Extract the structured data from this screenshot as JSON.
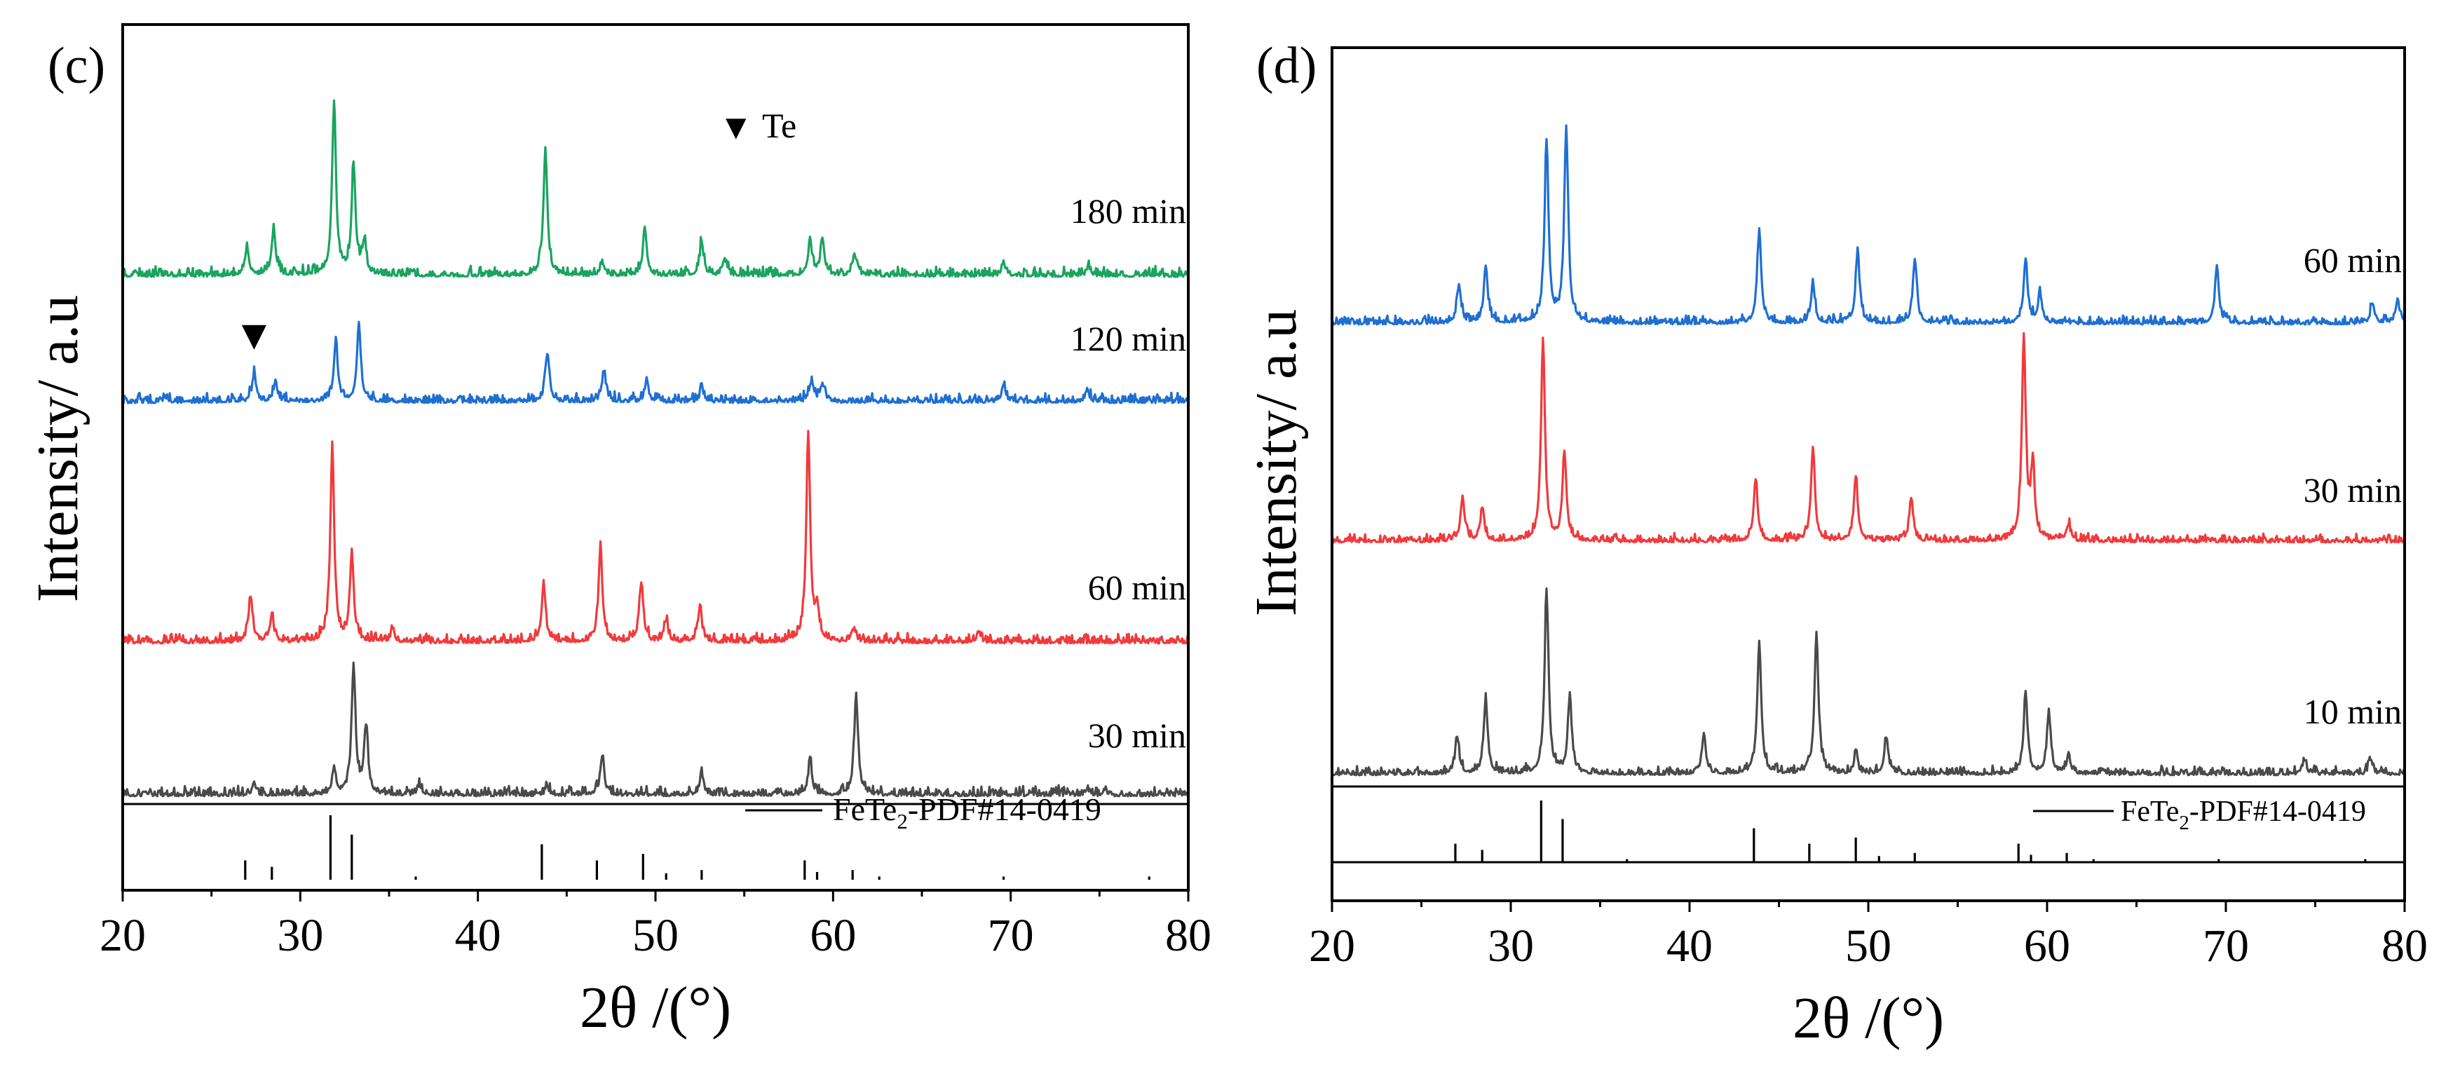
{
  "colors": {
    "green": "#1aa460",
    "blue": "#1f6fd2",
    "red": "#f03a3c",
    "gray": "#4a4a4a",
    "black": "#000000"
  },
  "chart_data": [
    {
      "type": "line",
      "panel_label": "(c)",
      "xlabel": "2θ /(°)",
      "ylabel": "Intensity/ a.u",
      "xlim": [
        20,
        80
      ],
      "xticks": [
        20,
        30,
        40,
        50,
        60,
        70,
        80
      ],
      "grid": false,
      "annotation": {
        "marker": "▼",
        "text": "Te",
        "peak_2theta": 27.4,
        "on_series": "120 min"
      },
      "series": [
        {
          "name": "180 min",
          "color": "green",
          "peaks": [
            [
              27.0,
              0.17
            ],
            [
              28.5,
              0.27
            ],
            [
              31.9,
              1.0
            ],
            [
              33.0,
              0.65
            ],
            [
              33.6,
              0.18
            ],
            [
              43.8,
              0.73
            ],
            [
              47.0,
              0.08
            ],
            [
              49.4,
              0.27
            ],
            [
              52.6,
              0.19
            ],
            [
              53.9,
              0.09
            ],
            [
              58.7,
              0.2
            ],
            [
              59.4,
              0.22
            ],
            [
              61.2,
              0.13
            ],
            [
              69.6,
              0.07
            ],
            [
              74.4,
              0.05
            ]
          ]
        },
        {
          "name": "120 min",
          "color": "blue",
          "peaks": [
            [
              27.4,
              0.27
            ],
            [
              28.6,
              0.2
            ],
            [
              32.0,
              0.6
            ],
            [
              33.3,
              0.74
            ],
            [
              43.9,
              0.48
            ],
            [
              47.1,
              0.3
            ],
            [
              49.5,
              0.17
            ],
            [
              52.6,
              0.12
            ],
            [
              58.8,
              0.2
            ],
            [
              59.4,
              0.18
            ],
            [
              69.6,
              0.17
            ],
            [
              74.3,
              0.12
            ]
          ]
        },
        {
          "name": "60 min",
          "color": "red",
          "peaks": [
            [
              27.2,
              0.22
            ],
            [
              28.4,
              0.13
            ],
            [
              31.8,
              0.93
            ],
            [
              32.9,
              0.41
            ],
            [
              35.2,
              0.06
            ],
            [
              43.7,
              0.28
            ],
            [
              46.9,
              0.45
            ],
            [
              49.2,
              0.28
            ],
            [
              50.6,
              0.1
            ],
            [
              52.5,
              0.17
            ],
            [
              58.6,
              1.0
            ],
            [
              59.1,
              0.15
            ],
            [
              61.2,
              0.06
            ],
            [
              68.2,
              0.05
            ]
          ]
        },
        {
          "name": "30 min",
          "color": "gray",
          "peaks": [
            [
              27.4,
              0.07
            ],
            [
              31.9,
              0.2
            ],
            [
              33.0,
              1.0
            ],
            [
              33.7,
              0.52
            ],
            [
              36.7,
              0.08
            ],
            [
              43.9,
              0.06
            ],
            [
              47.0,
              0.3
            ],
            [
              52.6,
              0.17
            ],
            [
              58.7,
              0.26
            ],
            [
              61.3,
              0.76
            ],
            [
              74.3,
              0.05
            ]
          ]
        }
      ],
      "reference": {
        "label": "FeTe",
        "subscript": "2",
        "suffix": "-PDF#14-0419",
        "lines": [
          [
            26.9,
            0.3
          ],
          [
            28.4,
            0.2
          ],
          [
            31.7,
            1.0
          ],
          [
            32.9,
            0.7
          ],
          [
            36.5,
            0.05
          ],
          [
            43.6,
            0.55
          ],
          [
            46.7,
            0.3
          ],
          [
            49.3,
            0.4
          ],
          [
            50.6,
            0.1
          ],
          [
            52.6,
            0.15
          ],
          [
            58.4,
            0.3
          ],
          [
            59.1,
            0.12
          ],
          [
            61.1,
            0.15
          ],
          [
            62.6,
            0.05
          ],
          [
            69.6,
            0.05
          ],
          [
            77.8,
            0.05
          ]
        ]
      }
    },
    {
      "type": "line",
      "panel_label": "(d)",
      "xlabel": "2θ /(°)",
      "ylabel": "Intensity/ a.u",
      "xlim": [
        20,
        80
      ],
      "xticks": [
        20,
        30,
        40,
        50,
        60,
        70,
        80
      ],
      "grid": false,
      "series": [
        {
          "name": "60 min",
          "color": "blue",
          "peaks": [
            [
              27.1,
              0.2
            ],
            [
              28.6,
              0.28
            ],
            [
              32.0,
              0.93
            ],
            [
              33.1,
              1.0
            ],
            [
              43.9,
              0.48
            ],
            [
              46.9,
              0.2
            ],
            [
              49.4,
              0.37
            ],
            [
              52.6,
              0.33
            ],
            [
              58.8,
              0.33
            ],
            [
              59.6,
              0.15
            ],
            [
              69.5,
              0.29
            ],
            [
              78.2,
              0.1
            ],
            [
              79.6,
              0.12
            ]
          ]
        },
        {
          "name": "30 min",
          "color": "red",
          "peaks": [
            [
              27.3,
              0.22
            ],
            [
              28.4,
              0.16
            ],
            [
              31.8,
              1.0
            ],
            [
              33.0,
              0.44
            ],
            [
              43.7,
              0.31
            ],
            [
              46.9,
              0.46
            ],
            [
              49.3,
              0.32
            ],
            [
              52.4,
              0.21
            ],
            [
              58.7,
              1.0
            ],
            [
              59.2,
              0.35
            ],
            [
              61.2,
              0.08
            ]
          ]
        },
        {
          "name": "10 min",
          "color": "gray",
          "peaks": [
            [
              27.0,
              0.2
            ],
            [
              28.6,
              0.4
            ],
            [
              32.0,
              1.0
            ],
            [
              33.3,
              0.42
            ],
            [
              40.8,
              0.22
            ],
            [
              43.9,
              0.72
            ],
            [
              47.1,
              0.77
            ],
            [
              49.3,
              0.1
            ],
            [
              51.0,
              0.2
            ],
            [
              58.8,
              0.43
            ],
            [
              60.1,
              0.33
            ],
            [
              61.2,
              0.1
            ],
            [
              74.4,
              0.08
            ],
            [
              78.1,
              0.08
            ]
          ]
        }
      ],
      "reference": {
        "label": "FeTe",
        "subscript": "2",
        "suffix": "-PDF#14-0419",
        "lines": [
          [
            26.9,
            0.3
          ],
          [
            28.4,
            0.2
          ],
          [
            31.7,
            1.0
          ],
          [
            32.9,
            0.7
          ],
          [
            36.5,
            0.05
          ],
          [
            43.6,
            0.55
          ],
          [
            46.7,
            0.3
          ],
          [
            49.3,
            0.4
          ],
          [
            50.6,
            0.1
          ],
          [
            52.6,
            0.15
          ],
          [
            58.4,
            0.3
          ],
          [
            59.1,
            0.12
          ],
          [
            61.1,
            0.15
          ],
          [
            62.6,
            0.05
          ],
          [
            69.6,
            0.05
          ],
          [
            77.8,
            0.05
          ]
        ]
      }
    }
  ]
}
